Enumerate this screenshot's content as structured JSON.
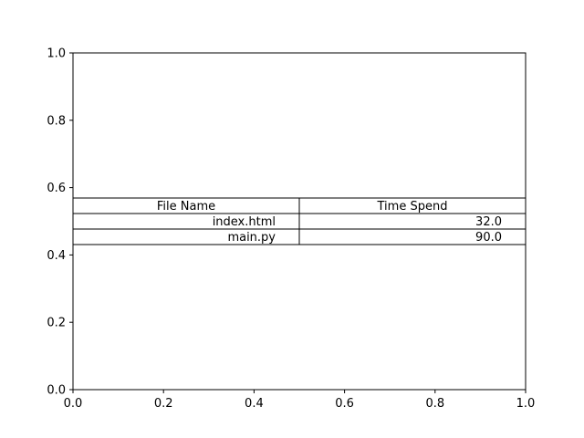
{
  "chart_data": {
    "type": "table",
    "title": "",
    "xlabel": "",
    "ylabel": "",
    "xlim": [
      0,
      1
    ],
    "ylim": [
      0,
      1
    ],
    "xticks": [
      "0.0",
      "0.2",
      "0.4",
      "0.6",
      "0.8",
      "1.0"
    ],
    "yticks": [
      "0.0",
      "0.2",
      "0.4",
      "0.6",
      "0.8",
      "1.0"
    ],
    "grid": false,
    "table": {
      "columns": [
        "File Name",
        "Time Spend"
      ],
      "rows": [
        [
          "index.html",
          "32.0"
        ],
        [
          "main.py",
          "90.0"
        ]
      ]
    }
  }
}
